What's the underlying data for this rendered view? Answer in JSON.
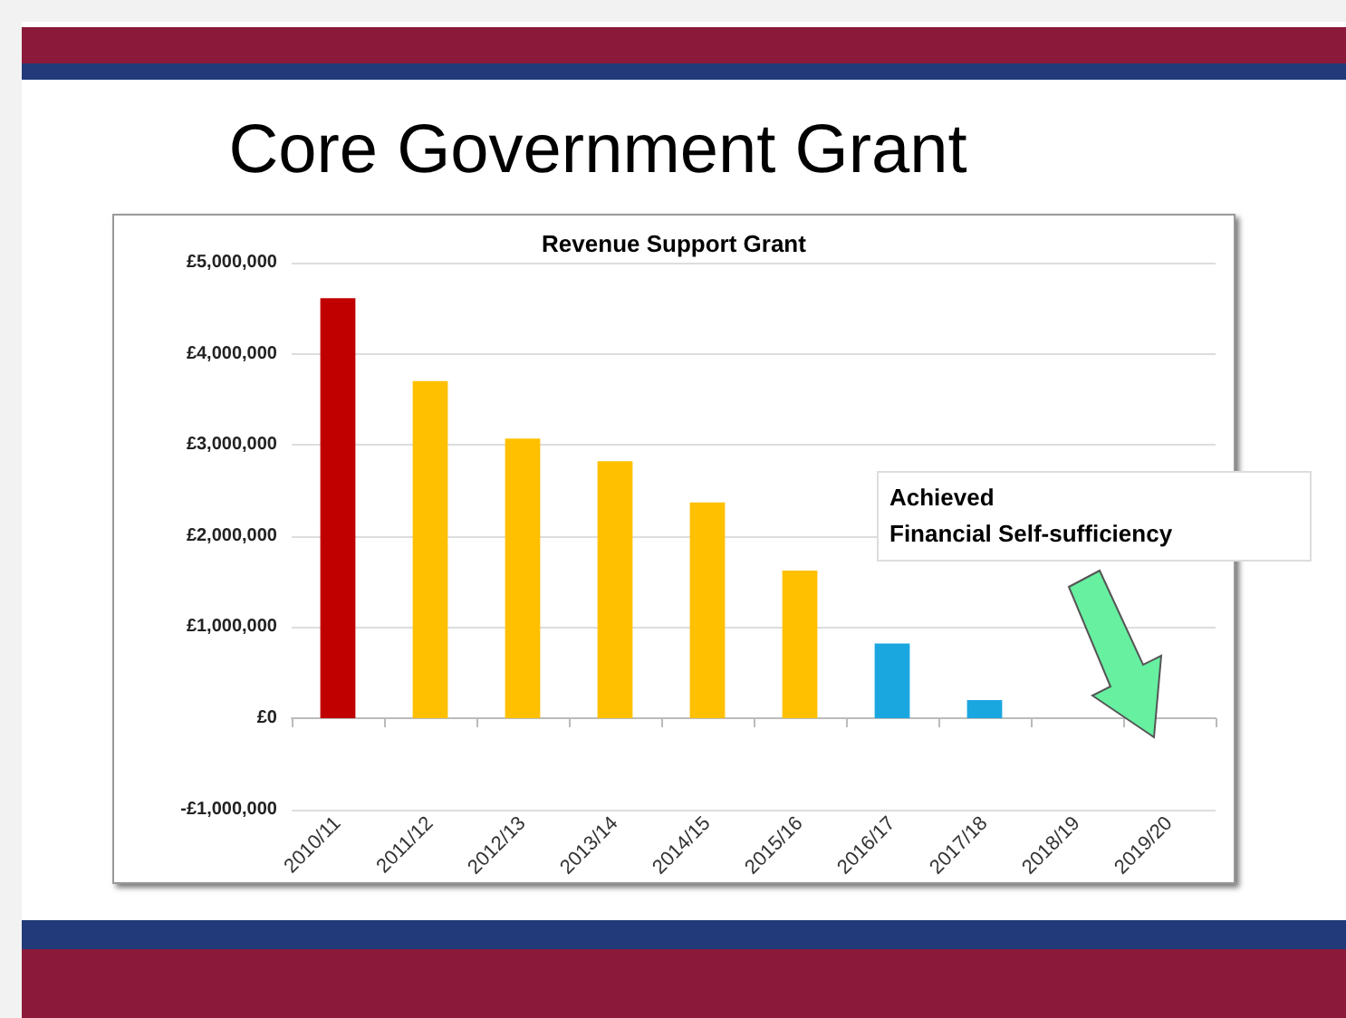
{
  "chart_data": {
    "type": "bar",
    "title": "Core Government Grant",
    "subtitle": "Revenue Support Grant",
    "categories": [
      "2010/11",
      "2011/12",
      "2012/13",
      "2013/14",
      "2014/15",
      "2015/16",
      "2016/17",
      "2017/18",
      "2018/19",
      "2019/20"
    ],
    "values": [
      4610000,
      3700000,
      3070000,
      2820000,
      2370000,
      1620000,
      820000,
      200000,
      0,
      0
    ],
    "colors": [
      "#c00000",
      "#ffc000",
      "#ffc000",
      "#ffc000",
      "#ffc000",
      "#ffc000",
      "#1aa7e0",
      "#1aa7e0",
      "#1aa7e0",
      "#1aa7e0"
    ],
    "ylim": [
      -1000000,
      5000000
    ],
    "yticks": [
      {
        "value": -1000000,
        "label": "-£1,000,000"
      },
      {
        "value": 0,
        "label": "£0"
      },
      {
        "value": 1000000,
        "label": "£1,000,000"
      },
      {
        "value": 2000000,
        "label": "£2,000,000"
      },
      {
        "value": 3000000,
        "label": "£3,000,000"
      },
      {
        "value": 4000000,
        "label": "£4,000,000"
      },
      {
        "value": 5000000,
        "label": "£5,000,000"
      }
    ],
    "annotations": [
      "Achieved\nFinancial Self-sufficiency"
    ],
    "grid": "y"
  }
}
